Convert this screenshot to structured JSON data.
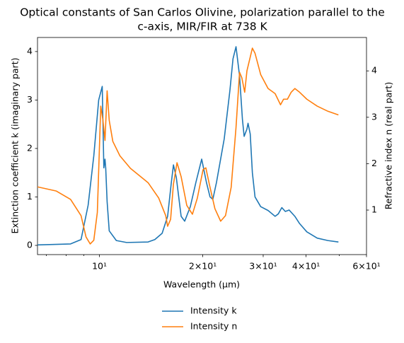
{
  "chart_data": {
    "type": "line",
    "title": [
      "Optical constants of San Carlos Olivine, polarization parallel to the",
      "c-axis, MIR/FIR at 738 K"
    ],
    "x_label": "Wavelength (μm)",
    "y_label": "Extinction coefficient k (imaginary part)",
    "y2_label": "Refractive index n (real part)",
    "xscale": "log",
    "xlim": [
      6.6,
      60
    ],
    "xticks": [
      {
        "value": 10,
        "label": "10¹"
      },
      {
        "value": 20,
        "label": "2×10¹"
      },
      {
        "value": 30,
        "label": "3×10¹"
      },
      {
        "value": 40,
        "label": "4×10¹"
      },
      {
        "value": 60,
        "label": "6×10¹"
      }
    ],
    "xticks_minor": [
      7,
      8,
      9,
      50
    ],
    "ylim": [
      -0.19,
      4.29
    ],
    "yticks": [
      0,
      1,
      2,
      3,
      4
    ],
    "y2lim": [
      0.04,
      4.72
    ],
    "y2ticks": [
      1,
      2,
      3,
      4
    ],
    "legend": "lower center outside",
    "series": [
      {
        "name": "Intensity k",
        "color": "#1f77b4",
        "x": [
          6.6,
          8.24,
          8.84,
          9.27,
          9.63,
          9.95,
          10.19,
          10.3,
          10.38,
          10.43,
          10.53,
          10.68,
          11.2,
          12.0,
          13.86,
          14.5,
          15.23,
          15.8,
          16.2,
          16.43,
          16.75,
          17.3,
          17.72,
          18.4,
          19.1,
          19.86,
          20.5,
          21.0,
          21.4,
          21.93,
          23.1,
          24.0,
          24.5,
          25.0,
          25.6,
          26.1,
          26.4,
          26.9,
          27.1,
          27.5,
          27.9,
          28.4,
          29.5,
          31.0,
          32.5,
          33.2,
          34.0,
          34.8,
          35.7,
          37.1,
          38.3,
          40.2,
          43.1,
          46.3,
          49.7
        ],
        "values": [
          0.01,
          0.03,
          0.12,
          0.83,
          1.85,
          3.0,
          3.28,
          1.6,
          1.78,
          1.6,
          0.9,
          0.3,
          0.1,
          0.06,
          0.07,
          0.12,
          0.25,
          0.6,
          1.3,
          1.66,
          1.4,
          0.6,
          0.5,
          0.8,
          1.3,
          1.78,
          1.3,
          1.0,
          0.95,
          1.3,
          2.2,
          3.2,
          3.85,
          4.1,
          3.5,
          2.6,
          2.25,
          2.4,
          2.52,
          2.3,
          1.5,
          1.0,
          0.8,
          0.72,
          0.6,
          0.65,
          0.78,
          0.7,
          0.73,
          0.6,
          0.45,
          0.28,
          0.15,
          0.1,
          0.07
        ]
      },
      {
        "name": "Intensity n",
        "color": "#ff7f0e",
        "axis": "y2",
        "x": [
          6.6,
          7.49,
          8.24,
          8.84,
          9.14,
          9.4,
          9.63,
          9.86,
          10.09,
          10.24,
          10.38,
          10.53,
          10.68,
          10.94,
          11.47,
          12.31,
          13.86,
          14.88,
          15.6,
          15.8,
          16.12,
          16.43,
          16.83,
          17.3,
          17.97,
          18.66,
          19.29,
          20.04,
          20.42,
          20.9,
          21.7,
          22.55,
          23.3,
          24.2,
          25.0,
          25.6,
          26.0,
          26.5,
          26.9,
          27.9,
          28.4,
          29.5,
          31.0,
          32.5,
          33.7,
          34.4,
          35.3,
          36.2,
          37.1,
          38.3,
          40.2,
          43.1,
          46.3,
          49.7
        ],
        "values": [
          1.5,
          1.41,
          1.23,
          0.88,
          0.42,
          0.27,
          0.35,
          0.95,
          3.24,
          2.93,
          2.5,
          3.57,
          2.93,
          2.48,
          2.17,
          1.9,
          1.59,
          1.26,
          0.88,
          0.65,
          0.8,
          1.56,
          2.02,
          1.72,
          1.1,
          0.91,
          1.26,
          1.87,
          1.91,
          1.56,
          1.03,
          0.76,
          0.88,
          1.49,
          2.78,
          3.97,
          3.85,
          3.54,
          4.0,
          4.49,
          4.38,
          3.92,
          3.62,
          3.51,
          3.27,
          3.39,
          3.39,
          3.54,
          3.62,
          3.54,
          3.39,
          3.24,
          3.13,
          3.05
        ]
      }
    ]
  }
}
